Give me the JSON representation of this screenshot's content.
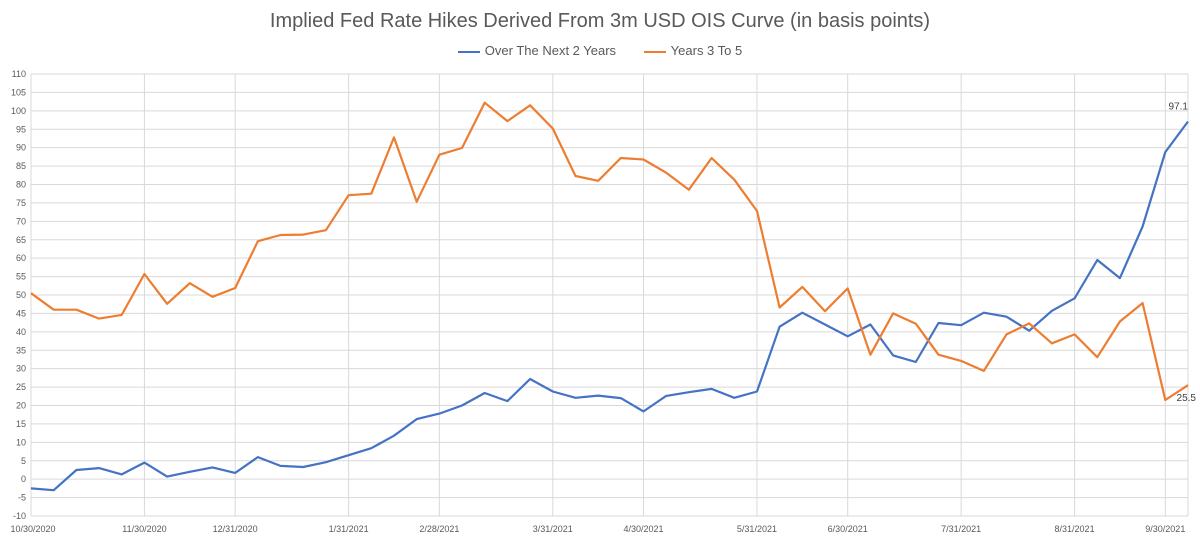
{
  "chart_data": {
    "type": "line",
    "title": "Implied Fed Rate Hikes Derived From 3m USD OIS Curve (in basis points)",
    "xlabel": "",
    "ylabel": "",
    "ylim": [
      -10,
      110
    ],
    "yticks": [
      -10,
      -5,
      0,
      5,
      10,
      15,
      20,
      25,
      30,
      35,
      40,
      45,
      50,
      55,
      60,
      65,
      70,
      75,
      80,
      85,
      90,
      95,
      100,
      105,
      110
    ],
    "xticks": [
      "10/30/2020",
      "11/30/2020",
      "12/31/2020",
      "1/31/2021",
      "2/28/2021",
      "3/31/2021",
      "4/30/2021",
      "5/31/2021",
      "6/30/2021",
      "7/31/2021",
      "8/31/2021",
      "9/30/2021"
    ],
    "grid": true,
    "legend_position": "top",
    "series": [
      {
        "name": "Over The Next 2 Years",
        "color": "#4472c4",
        "values": [
          -2.5,
          -3,
          2.5,
          3,
          1.3,
          4.5,
          0.7,
          2,
          3.2,
          1.7,
          6,
          3.6,
          3.3,
          4.6,
          6.5,
          8.4,
          11.8,
          16.3,
          17.8,
          20,
          23.4,
          21.2,
          27.2,
          23.8,
          22.1,
          22.7,
          22,
          18.4,
          22.6,
          23.6,
          24.5,
          22.1,
          23.8,
          41.4,
          45.2,
          42,
          38.8,
          42,
          33.6,
          31.8,
          42.4,
          41.8,
          45.2,
          44.1,
          40.3,
          45.7,
          49.1,
          59.5,
          54.6,
          68.6,
          88.8,
          97.1
        ],
        "end_label": "97.1"
      },
      {
        "name": "Years 3 To 5",
        "color": "#ed7d31",
        "values": [
          50.5,
          46,
          46,
          43.6,
          44.6,
          55.7,
          47.6,
          53.2,
          49.5,
          51.9,
          64.6,
          66.3,
          66.4,
          67.6,
          77.1,
          77.5,
          92.8,
          75.3,
          88.1,
          89.9,
          102.2,
          97.2,
          101.5,
          95.2,
          82.3,
          81,
          87.2,
          86.8,
          83.2,
          78.6,
          87.2,
          81.3,
          72.8,
          46.6,
          52.2,
          45.6,
          51.8,
          33.8,
          45,
          42.2,
          33.8,
          32.1,
          29.4,
          39.3,
          42.3,
          36.9,
          39.3,
          33.1,
          42.8,
          47.8,
          21.5,
          25.5
        ],
        "end_label": "25.5"
      }
    ]
  }
}
